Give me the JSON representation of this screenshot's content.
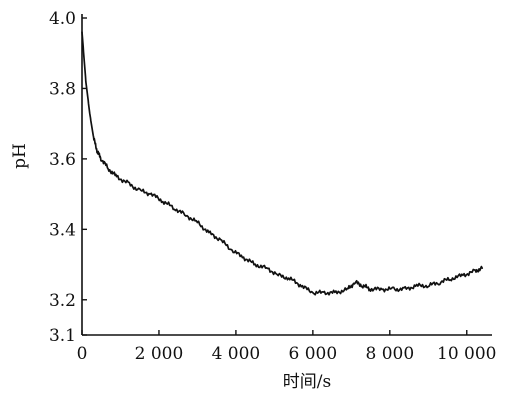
{
  "chart_data": {
    "type": "line",
    "title": "",
    "xlabel": "时间/s",
    "ylabel": "pH",
    "xlim": [
      0,
      10500
    ],
    "ylim": [
      3.1,
      4.0
    ],
    "x_ticks": [
      0,
      2000,
      4000,
      6000,
      8000,
      10000
    ],
    "x_tick_labels": [
      "0",
      "2 000",
      "4 000",
      "6 000",
      "8 000",
      "10 000"
    ],
    "y_ticks": [
      3.1,
      3.2,
      3.4,
      3.6,
      3.8,
      4.0
    ],
    "y_tick_labels": [
      "3.1",
      "3.2",
      "3.4",
      "3.6",
      "3.8",
      "4.0"
    ],
    "grid": false,
    "legend": "none",
    "series": [
      {
        "color": "#111111",
        "x": [
          0,
          100,
          200,
          300,
          400,
          500,
          700,
          900,
          1200,
          1500,
          1800,
          2100,
          2400,
          2700,
          3000,
          3300,
          3600,
          3900,
          4200,
          4500,
          4800,
          5100,
          5400,
          5700,
          6000,
          6300,
          6600,
          6900,
          7100,
          7300,
          7500,
          7800,
          8100,
          8400,
          8700,
          9000,
          9300,
          9600,
          9900,
          10200,
          10400
        ],
        "y": [
          3.96,
          3.82,
          3.73,
          3.66,
          3.62,
          3.6,
          3.57,
          3.55,
          3.53,
          3.51,
          3.5,
          3.48,
          3.46,
          3.44,
          3.42,
          3.39,
          3.37,
          3.34,
          3.32,
          3.3,
          3.29,
          3.27,
          3.26,
          3.24,
          3.22,
          3.22,
          3.22,
          3.23,
          3.25,
          3.24,
          3.23,
          3.23,
          3.23,
          3.23,
          3.24,
          3.24,
          3.25,
          3.26,
          3.27,
          3.28,
          3.29
        ]
      }
    ]
  }
}
